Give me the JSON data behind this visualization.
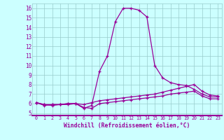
{
  "xlabel": "Windchill (Refroidissement éolien,°C)",
  "hours": [
    0,
    1,
    2,
    3,
    4,
    5,
    6,
    7,
    8,
    9,
    10,
    11,
    12,
    13,
    14,
    15,
    16,
    17,
    18,
    19,
    20,
    21,
    22,
    23
  ],
  "line1": [
    6.1,
    5.8,
    5.9,
    5.9,
    6.0,
    6.0,
    5.5,
    5.8,
    9.4,
    11.0,
    14.6,
    16.0,
    16.0,
    15.8,
    15.1,
    10.0,
    8.7,
    8.2,
    8.0,
    7.9,
    7.5,
    7.0,
    6.7,
    6.7
  ],
  "line2": [
    6.1,
    5.9,
    5.9,
    5.9,
    6.0,
    6.0,
    5.9,
    6.1,
    6.3,
    6.4,
    6.5,
    6.6,
    6.7,
    6.8,
    6.9,
    7.0,
    7.2,
    7.4,
    7.6,
    7.8,
    8.0,
    7.3,
    6.9,
    6.8
  ],
  "line3": [
    6.1,
    5.9,
    5.8,
    5.9,
    5.9,
    6.0,
    5.6,
    5.5,
    6.0,
    6.1,
    6.2,
    6.3,
    6.4,
    6.5,
    6.6,
    6.7,
    6.8,
    7.0,
    7.1,
    7.2,
    7.3,
    6.8,
    6.5,
    6.5
  ],
  "line_color": "#990099",
  "bg_color": "#ccffff",
  "grid_color": "#99cccc",
  "axis_bg": "#8800aa",
  "ylim_bottom": 4.75,
  "ylim_top": 16.5,
  "yticks": [
    5,
    6,
    7,
    8,
    9,
    10,
    11,
    12,
    13,
    14,
    15,
    16
  ],
  "xlim_left": -0.5,
  "xlim_right": 23.5
}
